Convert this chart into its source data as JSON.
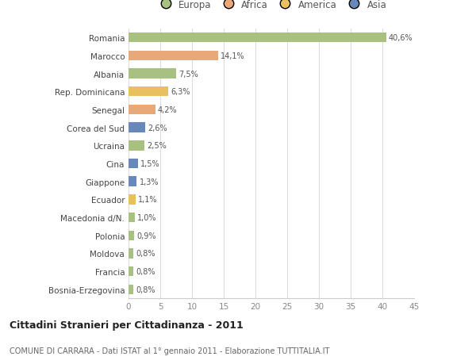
{
  "categories": [
    "Bosnia-Erzegovina",
    "Francia",
    "Moldova",
    "Polonia",
    "Macedonia d/N.",
    "Ecuador",
    "Giappone",
    "Cina",
    "Ucraina",
    "Corea del Sud",
    "Senegal",
    "Rep. Dominicana",
    "Albania",
    "Marocco",
    "Romania"
  ],
  "values": [
    0.8,
    0.8,
    0.8,
    0.9,
    1.0,
    1.1,
    1.3,
    1.5,
    2.5,
    2.6,
    4.2,
    6.3,
    7.5,
    14.1,
    40.6
  ],
  "labels": [
    "0,8%",
    "0,8%",
    "0,8%",
    "0,9%",
    "1,0%",
    "1,1%",
    "1,3%",
    "1,5%",
    "2,5%",
    "2,6%",
    "4,2%",
    "6,3%",
    "7,5%",
    "14,1%",
    "40,6%"
  ],
  "colors": [
    "#a8c080",
    "#a8c080",
    "#a8c080",
    "#a8c080",
    "#a8c080",
    "#e8c060",
    "#6888bb",
    "#6888bb",
    "#a8c080",
    "#6888bb",
    "#e8a878",
    "#e8c060",
    "#a8c080",
    "#e8a878",
    "#a8c080"
  ],
  "legend_labels": [
    "Europa",
    "Africa",
    "America",
    "Asia"
  ],
  "legend_colors": [
    "#a8c080",
    "#e8a878",
    "#e8c060",
    "#6888bb"
  ],
  "title": "Cittadini Stranieri per Cittadinanza - 2011",
  "subtitle": "COMUNE DI CARRARA - Dati ISTAT al 1° gennaio 2011 - Elaborazione TUTTITALIA.IT",
  "xlim": [
    0,
    45
  ],
  "xticks": [
    0,
    5,
    10,
    15,
    20,
    25,
    30,
    35,
    40,
    45
  ],
  "bg_color": "#ffffff",
  "grid_color": "#dddddd",
  "bar_height": 0.55
}
